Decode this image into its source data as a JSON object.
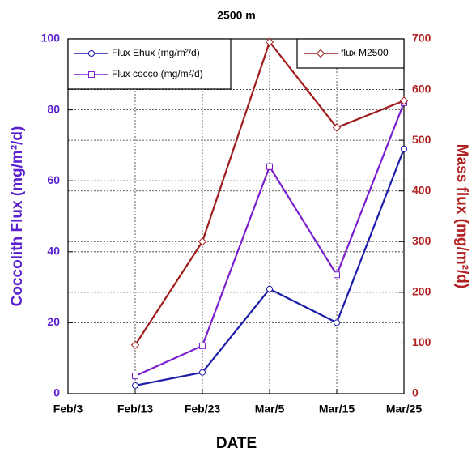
{
  "chart_data": {
    "type": "line",
    "title": "2500 m",
    "x_label": "DATE",
    "y_label": "Coccolith Flux (mg/m²/d)",
    "y2_label": "Mass flux (mg/m²/d)",
    "y_label_color": "#5a1fd0",
    "y2_label_color": "#b22222",
    "categories": [
      "Feb/3",
      "Feb/13",
      "Feb/23",
      "Mar/5",
      "Mar/15",
      "Mar/25"
    ],
    "series": [
      {
        "name": "Flux Ehux (mg/m²/d)",
        "color": "#1c1caa",
        "marker": "circle",
        "values": [
          null,
          2.3,
          6,
          29.5,
          20,
          69
        ]
      },
      {
        "name": "Flux cocco (mg/m²/d)",
        "color": "#7a1ed0",
        "marker": "square",
        "values": [
          null,
          5,
          13.5,
          64,
          33.5,
          82
        ]
      },
      {
        "name": "flux M2500",
        "color": "#a01c1c",
        "marker": "diamond",
        "axis": "y2",
        "values": [
          null,
          96,
          300,
          694,
          525,
          578
        ]
      }
    ],
    "ylim": [
      0,
      100
    ],
    "yticks": [
      0,
      20,
      40,
      60,
      80,
      100
    ],
    "y2lim": [
      0,
      700
    ],
    "y2ticks": [
      0,
      100,
      200,
      300,
      400,
      500,
      600,
      700
    ],
    "grid": true,
    "legend": {
      "y": "upper left",
      "y2": "upper right"
    }
  }
}
